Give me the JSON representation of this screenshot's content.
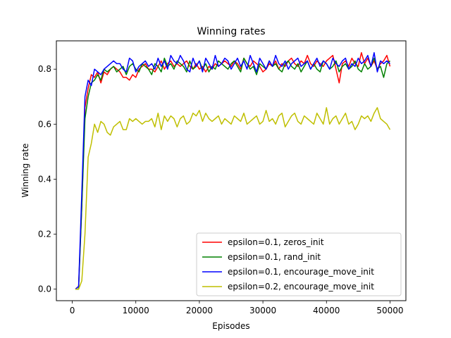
{
  "chart_data": {
    "type": "line",
    "title": "Winning rates",
    "xlabel": "Episodes",
    "ylabel": "Winning rate",
    "xlim": [
      -2500,
      52500
    ],
    "ylim": [
      -0.042,
      0.903
    ],
    "xticks": [
      0,
      10000,
      20000,
      30000,
      40000,
      50000
    ],
    "xtick_labels": [
      "0",
      "10000",
      "20000",
      "30000",
      "40000",
      "50000"
    ],
    "yticks": [
      0.0,
      0.2,
      0.4,
      0.6,
      0.8
    ],
    "ytick_labels": [
      "0.0",
      "0.2",
      "0.4",
      "0.6",
      "0.8"
    ],
    "grid": false,
    "legend_position": "bottom-right",
    "x": [
      500,
      1000,
      1500,
      2000,
      2500,
      3000,
      3500,
      4000,
      4500,
      5000,
      5500,
      6000,
      6500,
      7000,
      7500,
      8000,
      8500,
      9000,
      9500,
      10000,
      10500,
      11000,
      11500,
      12000,
      12500,
      13000,
      13500,
      14000,
      14500,
      15000,
      15500,
      16000,
      16500,
      17000,
      17500,
      18000,
      18500,
      19000,
      19500,
      20000,
      20500,
      21000,
      21500,
      22000,
      22500,
      23000,
      23500,
      24000,
      24500,
      25000,
      25500,
      26000,
      26500,
      27000,
      27500,
      28000,
      28500,
      29000,
      29500,
      30000,
      30500,
      31000,
      31500,
      32000,
      32500,
      33000,
      33500,
      34000,
      34500,
      35000,
      35500,
      36000,
      36500,
      37000,
      37500,
      38000,
      38500,
      39000,
      39500,
      40000,
      40500,
      41000,
      41500,
      42000,
      42500,
      43000,
      43500,
      44000,
      44500,
      45000,
      45500,
      46000,
      46500,
      47000,
      47500,
      48000,
      48500,
      49000,
      49500,
      50000
    ],
    "series": [
      {
        "name": "epsilon=0.1, zeros_init",
        "color": "#ff0000",
        "values": [
          0.0,
          0.01,
          0.3,
          0.66,
          0.73,
          0.78,
          0.77,
          0.79,
          0.75,
          0.79,
          0.78,
          0.8,
          0.81,
          0.8,
          0.79,
          0.77,
          0.77,
          0.76,
          0.78,
          0.77,
          0.8,
          0.81,
          0.82,
          0.8,
          0.8,
          0.79,
          0.81,
          0.83,
          0.8,
          0.82,
          0.83,
          0.81,
          0.82,
          0.81,
          0.82,
          0.83,
          0.81,
          0.8,
          0.82,
          0.8,
          0.81,
          0.79,
          0.81,
          0.8,
          0.82,
          0.81,
          0.82,
          0.83,
          0.82,
          0.81,
          0.83,
          0.82,
          0.8,
          0.84,
          0.82,
          0.81,
          0.83,
          0.82,
          0.81,
          0.79,
          0.8,
          0.82,
          0.81,
          0.83,
          0.8,
          0.82,
          0.81,
          0.83,
          0.84,
          0.82,
          0.81,
          0.83,
          0.82,
          0.85,
          0.82,
          0.81,
          0.83,
          0.82,
          0.81,
          0.83,
          0.84,
          0.85,
          0.8,
          0.75,
          0.82,
          0.83,
          0.81,
          0.84,
          0.82,
          0.81,
          0.86,
          0.82,
          0.84,
          0.81,
          0.83,
          0.8,
          0.82,
          0.83,
          0.85,
          0.81
        ]
      },
      {
        "name": "epsilon=0.1, rand_init",
        "color": "#008000",
        "values": [
          0.0,
          0.0,
          0.3,
          0.62,
          0.7,
          0.75,
          0.76,
          0.78,
          0.76,
          0.8,
          0.79,
          0.8,
          0.81,
          0.79,
          0.8,
          0.81,
          0.78,
          0.81,
          0.82,
          0.8,
          0.79,
          0.82,
          0.81,
          0.8,
          0.78,
          0.82,
          0.81,
          0.79,
          0.84,
          0.81,
          0.82,
          0.8,
          0.83,
          0.82,
          0.81,
          0.79,
          0.83,
          0.8,
          0.81,
          0.83,
          0.8,
          0.82,
          0.79,
          0.81,
          0.8,
          0.83,
          0.82,
          0.81,
          0.8,
          0.82,
          0.83,
          0.81,
          0.79,
          0.84,
          0.82,
          0.8,
          0.81,
          0.78,
          0.82,
          0.81,
          0.8,
          0.83,
          0.81,
          0.82,
          0.8,
          0.79,
          0.82,
          0.83,
          0.81,
          0.8,
          0.82,
          0.79,
          0.81,
          0.83,
          0.8,
          0.82,
          0.8,
          0.79,
          0.83,
          0.82,
          0.8,
          0.81,
          0.83,
          0.79,
          0.81,
          0.82,
          0.8,
          0.81,
          0.83,
          0.8,
          0.79,
          0.82,
          0.8,
          0.81,
          0.84,
          0.8,
          0.81,
          0.77,
          0.82,
          0.83
        ]
      },
      {
        "name": "epsilon=0.1, encourage_move_init",
        "color": "#0000ff",
        "values": [
          0.0,
          0.01,
          0.35,
          0.7,
          0.76,
          0.74,
          0.8,
          0.79,
          0.78,
          0.8,
          0.81,
          0.82,
          0.83,
          0.82,
          0.82,
          0.8,
          0.79,
          0.84,
          0.83,
          0.79,
          0.81,
          0.82,
          0.83,
          0.81,
          0.82,
          0.8,
          0.84,
          0.81,
          0.83,
          0.8,
          0.85,
          0.83,
          0.82,
          0.85,
          0.83,
          0.8,
          0.79,
          0.84,
          0.81,
          0.83,
          0.79,
          0.84,
          0.82,
          0.8,
          0.85,
          0.81,
          0.82,
          0.84,
          0.83,
          0.8,
          0.82,
          0.84,
          0.81,
          0.83,
          0.8,
          0.85,
          0.82,
          0.79,
          0.84,
          0.82,
          0.8,
          0.83,
          0.81,
          0.85,
          0.82,
          0.81,
          0.83,
          0.8,
          0.82,
          0.83,
          0.84,
          0.81,
          0.82,
          0.83,
          0.8,
          0.82,
          0.84,
          0.81,
          0.83,
          0.82,
          0.8,
          0.84,
          0.82,
          0.81,
          0.83,
          0.84,
          0.8,
          0.82,
          0.81,
          0.84,
          0.82,
          0.83,
          0.85,
          0.81,
          0.86,
          0.79,
          0.83,
          0.82,
          0.83,
          0.82
        ]
      },
      {
        "name": "epsilon=0.2, encourage_move_init",
        "color": "#bfbf00",
        "values": [
          0.0,
          0.0,
          0.03,
          0.2,
          0.48,
          0.53,
          0.6,
          0.57,
          0.61,
          0.6,
          0.57,
          0.56,
          0.59,
          0.6,
          0.61,
          0.58,
          0.58,
          0.62,
          0.61,
          0.62,
          0.61,
          0.6,
          0.61,
          0.61,
          0.62,
          0.59,
          0.64,
          0.58,
          0.63,
          0.61,
          0.63,
          0.62,
          0.59,
          0.62,
          0.63,
          0.6,
          0.61,
          0.64,
          0.63,
          0.65,
          0.61,
          0.64,
          0.62,
          0.61,
          0.62,
          0.63,
          0.6,
          0.62,
          0.61,
          0.6,
          0.63,
          0.62,
          0.61,
          0.64,
          0.6,
          0.61,
          0.62,
          0.63,
          0.6,
          0.61,
          0.65,
          0.61,
          0.62,
          0.6,
          0.63,
          0.64,
          0.59,
          0.61,
          0.63,
          0.64,
          0.61,
          0.6,
          0.63,
          0.62,
          0.61,
          0.6,
          0.64,
          0.62,
          0.6,
          0.66,
          0.6,
          0.62,
          0.63,
          0.6,
          0.62,
          0.64,
          0.6,
          0.61,
          0.58,
          0.6,
          0.63,
          0.62,
          0.63,
          0.61,
          0.64,
          0.66,
          0.62,
          0.61,
          0.6,
          0.58
        ]
      }
    ]
  }
}
